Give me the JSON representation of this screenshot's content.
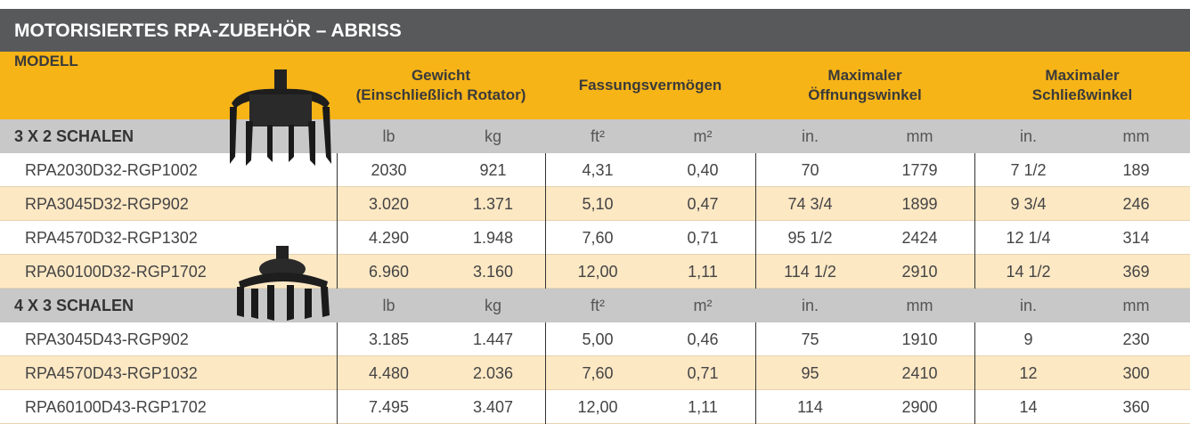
{
  "title": "MOTORISIERTES RPA-ZUBEHÖR – ABRISS",
  "table": {
    "header": {
      "model": "MODELL",
      "groups": [
        [
          "Gewicht",
          "(Einschließlich Rotator)"
        ],
        [
          "Fassungsvermögen"
        ],
        [
          "Maximaler",
          "Öffnungswinkel"
        ],
        [
          "Maximaler",
          "Schließwinkel"
        ]
      ]
    },
    "sections": [
      {
        "name": "3 X 2 SCHALEN",
        "units": [
          "lb",
          "kg",
          "ft²",
          "m²",
          "in.",
          "mm",
          "in.",
          "mm"
        ],
        "rows": [
          [
            "RPA2030D32-RGP1002",
            "2030",
            "921",
            "4,31",
            "0,40",
            "70",
            "1779",
            "7 1/2",
            "189"
          ],
          [
            "RPA3045D32-RGP902",
            "3.020",
            "1.371",
            "5,10",
            "0,47",
            "74 3/4",
            "1899",
            "9 3/4",
            "246"
          ],
          [
            "RPA4570D32-RGP1302",
            "4.290",
            "1.948",
            "7,60",
            "0,71",
            "95 1/2",
            "2424",
            "12 1/4",
            "314"
          ],
          [
            "RPA60100D32-RGP1702",
            "6.960",
            "3.160",
            "12,00",
            "1,11",
            "114 1/2",
            "2910",
            "14 1/2",
            "369"
          ]
        ]
      },
      {
        "name": "4 X 3 SCHALEN",
        "units": [
          "lb",
          "kg",
          "ft²",
          "m²",
          "in.",
          "mm",
          "in.",
          "mm"
        ],
        "rows": [
          [
            "RPA3045D43-RGP902",
            "3.185",
            "1.447",
            "5,00",
            "0,46",
            "75",
            "1910",
            "9",
            "230"
          ],
          [
            "RPA4570D43-RGP1032",
            "4.480",
            "2.036",
            "7,60",
            "0,71",
            "95",
            "2410",
            "12",
            "300"
          ],
          [
            "RPA60100D43-RGP1702",
            "7.495",
            "3.407",
            "12,00",
            "1,11",
            "114",
            "2900",
            "14",
            "360"
          ]
        ]
      }
    ]
  }
}
